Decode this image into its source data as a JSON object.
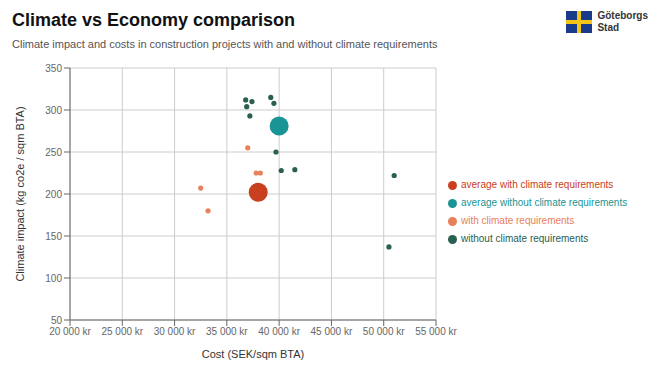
{
  "chart_data": {
    "type": "scatter",
    "title": "Climate vs Economy comparison",
    "subtitle": "Climate impact and costs in construction projects with and without climate requirements",
    "x_label": "Cost (SEK/sqm BTA)",
    "y_label": "Climate impact (kg co2e / sqm BTA)",
    "xlim": [
      20000,
      55000
    ],
    "ylim": [
      50,
      350
    ],
    "xticks": [
      {
        "value": 20000,
        "label": "20 000 kr"
      },
      {
        "value": 25000,
        "label": "25 000 kr"
      },
      {
        "value": 30000,
        "label": "30 000 kr"
      },
      {
        "value": 35000,
        "label": "35 000 kr"
      },
      {
        "value": 40000,
        "label": "40 000 kr"
      },
      {
        "value": 45000,
        "label": "45 000 kr"
      },
      {
        "value": 50000,
        "label": "50 000 kr"
      },
      {
        "value": 55000,
        "label": "55 000 kr"
      }
    ],
    "yticks": [
      50,
      100,
      150,
      200,
      250,
      300,
      350
    ],
    "grid": true,
    "legend": "right",
    "annotations": [
      "Göteborgs",
      "Stad"
    ],
    "series": [
      {
        "name": "with climate requirements",
        "color": "#e8805a",
        "marker": "dot",
        "x": [
          32500,
          33200,
          37000,
          37800,
          38200
        ],
        "values": [
          207,
          180,
          255,
          225,
          225
        ]
      },
      {
        "name": "average with climate requirements",
        "color": "#c94020",
        "marker": "circle",
        "x": [
          38000
        ],
        "values": [
          202
        ]
      },
      {
        "name": "without climate requirements",
        "color": "#2a6050",
        "marker": "dot",
        "x": [
          36800,
          36900,
          37200,
          37400,
          39200,
          39500,
          39700,
          40200,
          41500,
          50500,
          51000
        ],
        "values": [
          312,
          304,
          293,
          310,
          315,
          308,
          250,
          228,
          229,
          137,
          222
        ]
      },
      {
        "name": "average without climate requirements",
        "color": "#1a9595",
        "marker": "circle",
        "x": [
          40000
        ],
        "values": [
          281
        ]
      }
    ]
  }
}
